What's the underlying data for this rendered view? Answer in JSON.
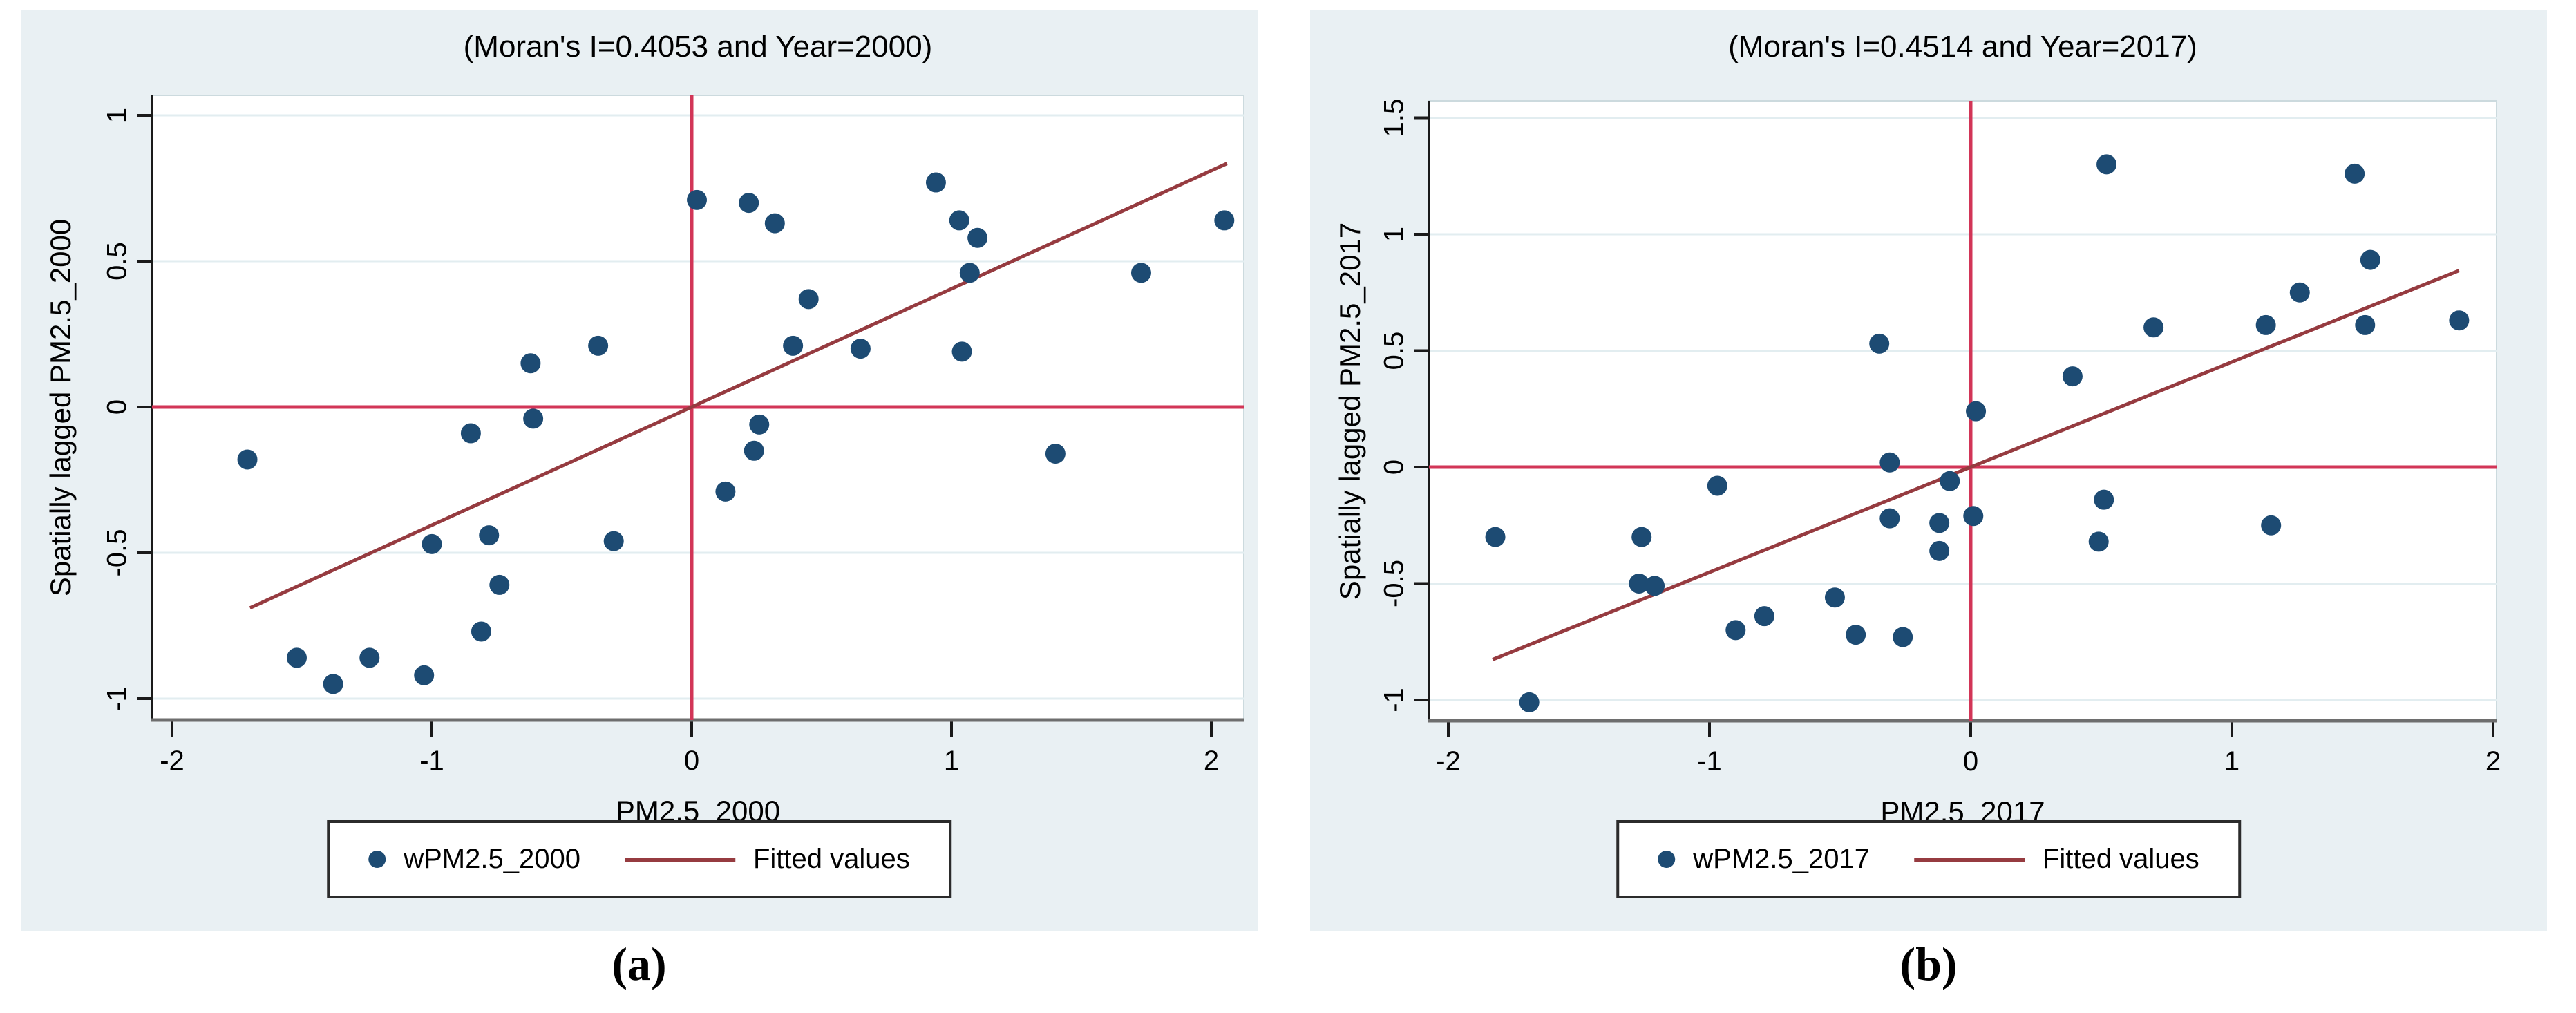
{
  "colors": {
    "panel_bg": "#e9f0f3",
    "plot_bg": "#ffffff",
    "plot_frame": "#ccdade",
    "gridline": "#e2edf0",
    "y_axis_line": "#1a1a1a",
    "x_axis_line": "#6e6e6e",
    "tick": "#1a1a1a",
    "point": "#1d4b73",
    "fitted_line": "#963b40",
    "reference_line": "#d23557",
    "text": "#000000",
    "legend_border": "#2b2b2b"
  },
  "chart_data": [
    {
      "type": "scatter",
      "caption": "(a)",
      "title": "(Moran's I=0.4053 and Year=2000)",
      "xlabel": "PM2.5_2000",
      "ylabel": "Spatially lagged PM2.5_2000",
      "moran_i": 0.4053,
      "year": 2000,
      "xlim": [
        -2.08,
        2.12
      ],
      "ylim": [
        -1.07,
        1.07
      ],
      "grid": "horizontal",
      "legend_position": "bottom",
      "x_ticks": [
        {
          "v": -2,
          "label": "-2"
        },
        {
          "v": -1,
          "label": "-1"
        },
        {
          "v": 0,
          "label": "0"
        },
        {
          "v": 1,
          "label": "1"
        },
        {
          "v": 2,
          "label": "2"
        }
      ],
      "y_ticks": [
        {
          "v": 1,
          "label": "1"
        },
        {
          "v": 0.5,
          "label": "0.5"
        },
        {
          "v": 0,
          "label": "0"
        },
        {
          "v": -0.5,
          "label": "-0.5"
        },
        {
          "v": -1,
          "label": "-1"
        }
      ],
      "reference_lines": {
        "x": 0,
        "y": 0
      },
      "fitted": {
        "slope": 0.4053,
        "intercept": 0,
        "x_start": -1.7,
        "x_end": 2.06
      },
      "legend": {
        "marker_label": "wPM2.5_2000",
        "line_label": "Fitted values"
      },
      "points": [
        [
          0.02,
          0.71
        ],
        [
          0.22,
          0.7
        ],
        [
          0.32,
          0.63
        ],
        [
          0.45,
          0.37
        ],
        [
          0.39,
          0.21
        ],
        [
          0.65,
          0.2
        ],
        [
          -0.36,
          0.21
        ],
        [
          -0.62,
          0.15
        ],
        [
          0.94,
          0.77
        ],
        [
          1.03,
          0.64
        ],
        [
          1.1,
          0.58
        ],
        [
          1.07,
          0.46
        ],
        [
          1.73,
          0.46
        ],
        [
          2.05,
          0.64
        ],
        [
          1.04,
          0.19
        ],
        [
          -1.71,
          -0.18
        ],
        [
          -0.85,
          -0.09
        ],
        [
          -1.0,
          -0.47
        ],
        [
          -0.78,
          -0.44
        ],
        [
          -0.74,
          -0.61
        ],
        [
          -0.81,
          -0.77
        ],
        [
          -1.52,
          -0.86
        ],
        [
          -1.38,
          -0.95
        ],
        [
          -1.24,
          -0.86
        ],
        [
          -1.03,
          -0.92
        ],
        [
          -0.61,
          -0.04
        ],
        [
          0.26,
          -0.06
        ],
        [
          0.24,
          -0.15
        ],
        [
          0.13,
          -0.29
        ],
        [
          -0.3,
          -0.46
        ],
        [
          1.4,
          -0.16
        ]
      ]
    },
    {
      "type": "scatter",
      "caption": "(b)",
      "title": "(Moran's I=0.4514 and Year=2017)",
      "xlabel": "PM2.5_2017",
      "ylabel": "Spatially lagged PM2.5_2017",
      "moran_i": 0.4514,
      "year": 2017,
      "xlim": [
        -2.07,
        2.01
      ],
      "ylim": [
        -1.09,
        1.58
      ],
      "grid": "horizontal",
      "legend_position": "bottom",
      "x_ticks": [
        {
          "v": -2,
          "label": "-2"
        },
        {
          "v": -1,
          "label": "-1"
        },
        {
          "v": 0,
          "label": "0"
        },
        {
          "v": 1,
          "label": "1"
        },
        {
          "v": 2,
          "label": "2"
        }
      ],
      "y_ticks": [
        {
          "v": 1.5,
          "label": "1.5"
        },
        {
          "v": 1,
          "label": "1"
        },
        {
          "v": 0.5,
          "label": "0.5"
        },
        {
          "v": 0,
          "label": "0"
        },
        {
          "v": -0.5,
          "label": "-0.5"
        },
        {
          "v": -1,
          "label": "-1"
        }
      ],
      "reference_lines": {
        "x": 0,
        "y": 0
      },
      "fitted": {
        "slope": 0.4514,
        "intercept": 0,
        "x_start": -1.83,
        "x_end": 1.87
      },
      "legend": {
        "marker_label": "wPM2.5_2017",
        "line_label": "Fitted values"
      },
      "points": [
        [
          0.52,
          1.3
        ],
        [
          -0.35,
          0.53
        ],
        [
          0.39,
          0.39
        ],
        [
          0.02,
          0.24
        ],
        [
          1.47,
          1.26
        ],
        [
          1.53,
          0.89
        ],
        [
          1.26,
          0.75
        ],
        [
          1.13,
          0.61
        ],
        [
          1.51,
          0.61
        ],
        [
          1.87,
          0.63
        ],
        [
          0.7,
          0.6
        ],
        [
          -0.97,
          -0.08
        ],
        [
          -1.82,
          -0.3
        ],
        [
          -1.26,
          -0.3
        ],
        [
          -1.27,
          -0.5
        ],
        [
          -1.21,
          -0.51
        ],
        [
          -0.9,
          -0.7
        ],
        [
          -0.79,
          -0.64
        ],
        [
          -1.69,
          -1.01
        ],
        [
          -0.31,
          0.02
        ],
        [
          -0.08,
          -0.06
        ],
        [
          -0.31,
          -0.22
        ],
        [
          -0.12,
          -0.24
        ],
        [
          0.01,
          -0.21
        ],
        [
          -0.12,
          -0.36
        ],
        [
          0.51,
          -0.14
        ],
        [
          0.49,
          -0.32
        ],
        [
          -0.52,
          -0.56
        ],
        [
          -0.44,
          -0.72
        ],
        [
          -0.26,
          -0.73
        ],
        [
          1.15,
          -0.25
        ]
      ]
    }
  ]
}
